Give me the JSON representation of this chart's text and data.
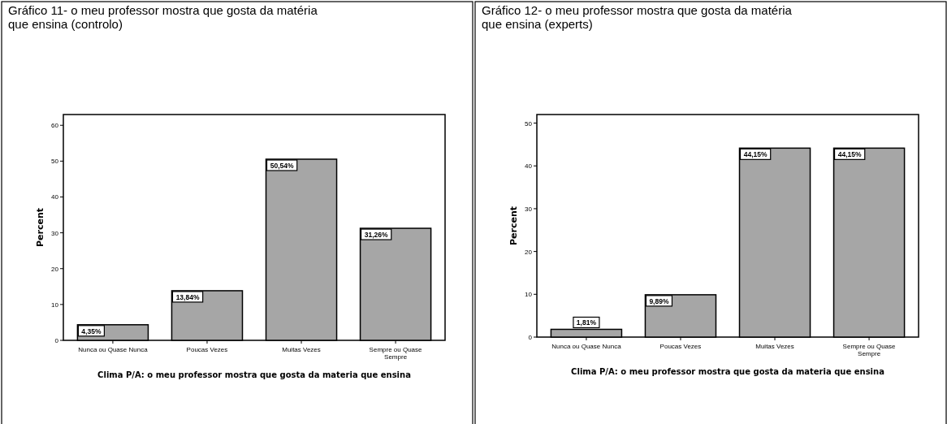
{
  "chart_data": [
    {
      "type": "bar",
      "title": "Gráfico 11- o meu professor mostra que gosta da matéria que ensina (controlo)",
      "xlabel": "Clima P/A: o meu professor mostra que gosta da materia que ensina",
      "ylabel": "Percent",
      "categories": [
        "Nunca ou Quase Nunca",
        "Poucas Vezes",
        "Muitas Vezes",
        "Sempre ou Quase Sempre"
      ],
      "values": [
        4.35,
        13.84,
        50.54,
        31.26
      ],
      "value_labels": [
        "4,35%",
        "13,84%",
        "50,54%",
        "31,26%"
      ],
      "color": "#a6a6a6",
      "ylim": [
        0,
        63
      ],
      "yticks": [
        0,
        10,
        20,
        30,
        40,
        50,
        60
      ]
    },
    {
      "type": "bar",
      "title": "Gráfico 12- o meu professor mostra que gosta da matéria que ensina (experts)",
      "xlabel": "Clima P/A: o meu professor mostra que gosta da materia que ensina",
      "ylabel": "Percent",
      "categories": [
        "Nunca ou Quase Nunca",
        "Poucas Vezes",
        "Muitas Vezes",
        "Sempre ou Quase Sempre"
      ],
      "values": [
        1.81,
        9.89,
        44.15,
        44.15
      ],
      "value_labels": [
        "1,81%",
        "9,89%",
        "44,15%",
        "44,15%"
      ],
      "color": "#a6a6a6",
      "ylim": [
        0,
        52
      ],
      "yticks": [
        0,
        10,
        20,
        30,
        40,
        50
      ]
    }
  ]
}
